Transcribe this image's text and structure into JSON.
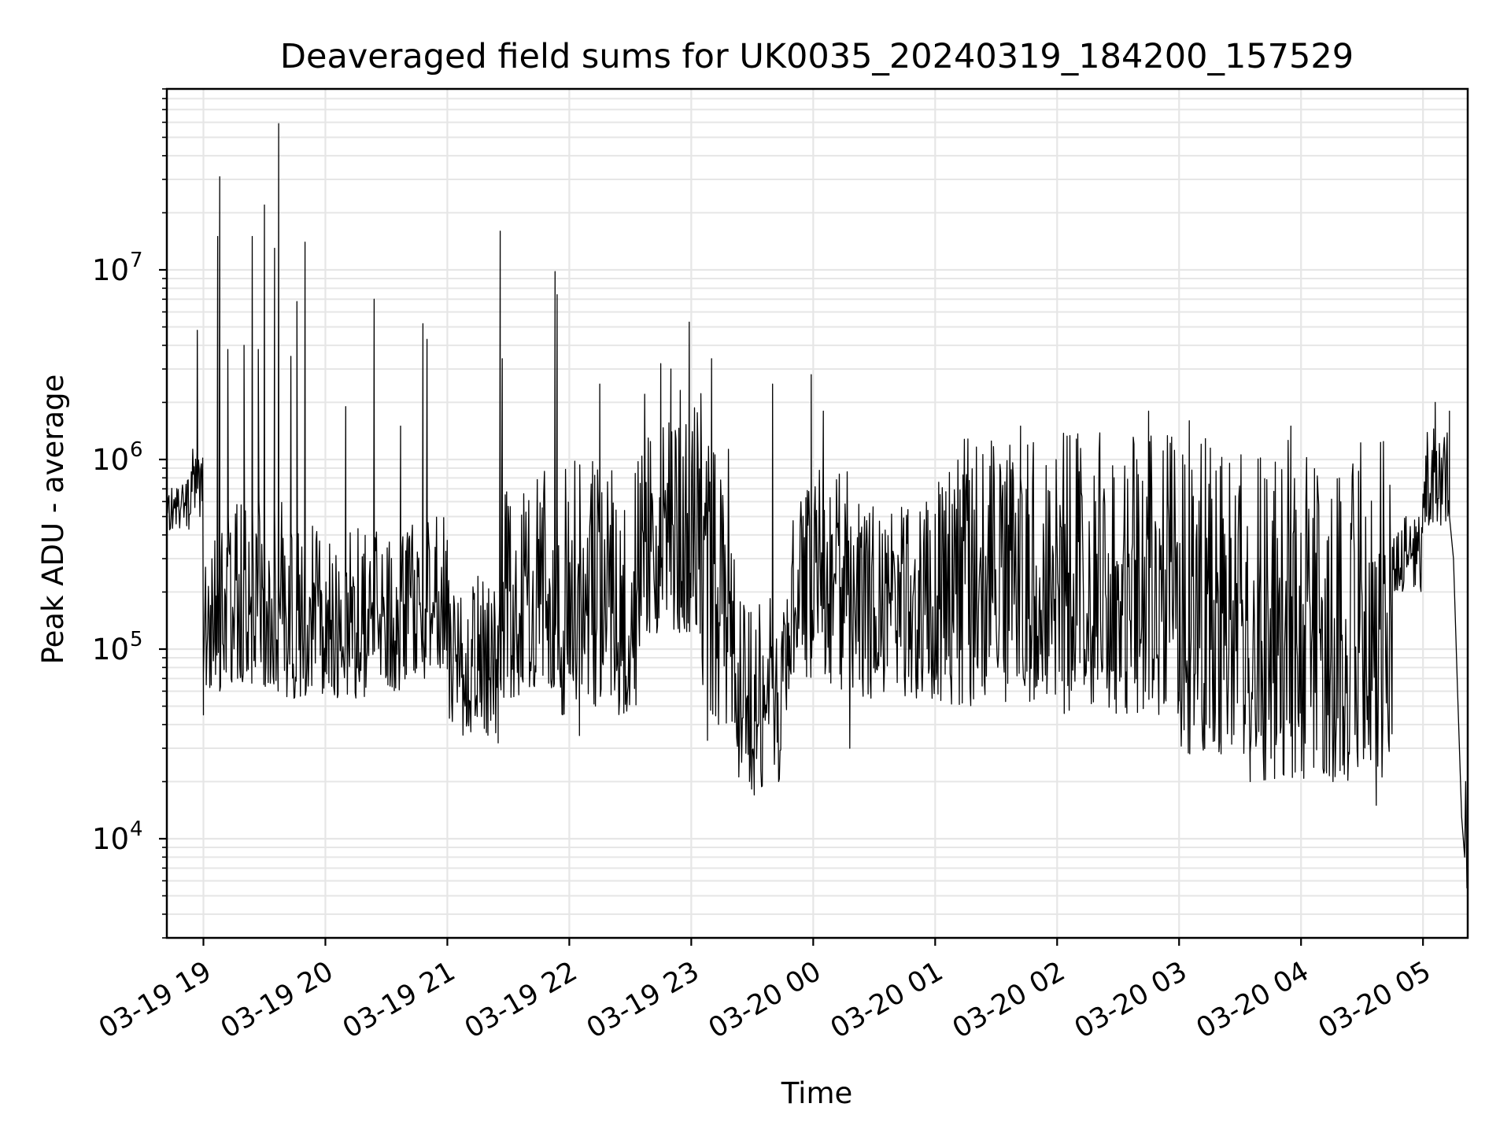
{
  "chart_data": {
    "type": "line",
    "title": "Deaveraged field sums for UK0035_20240319_184200_157529",
    "xlabel": "Time",
    "ylabel": "Peak ADU - average",
    "yscale": "log",
    "grid": true,
    "grid_minor": true,
    "line_color": "#000000",
    "grid_color": "#e6e6e6",
    "xlim": [
      "2024-03-19 18:42",
      "2024-03-20 05:22"
    ],
    "ylim": [
      3000,
      90000000
    ],
    "xticks": [
      {
        "value": "2024-03-19 19:00",
        "label": "03-19 19"
      },
      {
        "value": "2024-03-19 20:00",
        "label": "03-19 20"
      },
      {
        "value": "2024-03-19 21:00",
        "label": "03-19 21"
      },
      {
        "value": "2024-03-19 22:00",
        "label": "03-19 22"
      },
      {
        "value": "2024-03-19 23:00",
        "label": "03-19 23"
      },
      {
        "value": "2024-03-20 00:00",
        "label": "03-20 00"
      },
      {
        "value": "2024-03-20 01:00",
        "label": "03-20 01"
      },
      {
        "value": "2024-03-20 02:00",
        "label": "03-20 02"
      },
      {
        "value": "2024-03-20 03:00",
        "label": "03-20 03"
      },
      {
        "value": "2024-03-20 04:00",
        "label": "03-20 04"
      },
      {
        "value": "2024-03-20 05:00",
        "label": "03-20 05"
      }
    ],
    "yticks": [
      {
        "value": 10000,
        "base": "10",
        "exp": "4"
      },
      {
        "value": 100000,
        "base": "10",
        "exp": "5"
      },
      {
        "value": 1000000,
        "base": "10",
        "exp": "6"
      },
      {
        "value": 10000000,
        "base": "10",
        "exp": "7"
      }
    ],
    "series": [
      {
        "segments": [
          {
            "start": "2024-03-19 18:42",
            "end": "2024-03-19 18:53",
            "low": 420000,
            "high": 800000
          },
          {
            "start": "2024-03-19 18:53",
            "end": "2024-03-19 19:00",
            "low": 500000,
            "high": 1200000
          },
          {
            "start": "2024-03-19 19:00",
            "end": "2024-03-19 19:40",
            "low": 60000,
            "high": 600000
          },
          {
            "start": "2024-03-19 19:40",
            "end": "2024-03-19 20:40",
            "low": 55000,
            "high": 450000
          },
          {
            "start": "2024-03-19 20:40",
            "end": "2024-03-19 21:00",
            "low": 70000,
            "high": 500000
          },
          {
            "start": "2024-03-19 21:00",
            "end": "2024-03-19 21:25",
            "low": 35000,
            "high": 250000
          },
          {
            "start": "2024-03-19 21:25",
            "end": "2024-03-19 21:55",
            "low": 55000,
            "high": 900000
          },
          {
            "start": "2024-03-19 21:55",
            "end": "2024-03-19 22:35",
            "low": 45000,
            "high": 1000000
          },
          {
            "start": "2024-03-19 22:35",
            "end": "2024-03-19 23:05",
            "low": 120000,
            "high": 2500000
          },
          {
            "start": "2024-03-19 23:05",
            "end": "2024-03-19 23:22",
            "low": 40000,
            "high": 1300000
          },
          {
            "start": "2024-03-19 23:22",
            "end": "2024-03-19 23:48",
            "low": 18000,
            "high": 200000
          },
          {
            "start": "2024-03-19 23:48",
            "end": "2024-03-20 00:20",
            "low": 60000,
            "high": 900000
          },
          {
            "start": "2024-03-20 00:20",
            "end": "2024-03-20 01:00",
            "low": 55000,
            "high": 600000
          },
          {
            "start": "2024-03-20 01:00",
            "end": "2024-03-20 02:00",
            "low": 50000,
            "high": 1300000
          },
          {
            "start": "2024-03-20 02:00",
            "end": "2024-03-20 03:00",
            "low": 45000,
            "high": 1400000
          },
          {
            "start": "2024-03-20 03:00",
            "end": "2024-03-20 03:40",
            "low": 28000,
            "high": 1300000
          },
          {
            "start": "2024-03-20 03:40",
            "end": "2024-03-20 04:45",
            "low": 20000,
            "high": 1300000
          },
          {
            "start": "2024-03-20 04:45",
            "end": "2024-03-20 05:00",
            "low": 200000,
            "high": 500000
          },
          {
            "start": "2024-03-20 05:00",
            "end": "2024-03-20 05:13",
            "low": 450000,
            "high": 1500000
          }
        ],
        "peaks": [
          {
            "t": "2024-03-19 18:57",
            "v": 4800000
          },
          {
            "t": "2024-03-19 19:07",
            "v": 15000000
          },
          {
            "t": "2024-03-19 19:08",
            "v": 31000000
          },
          {
            "t": "2024-03-19 19:12",
            "v": 3800000
          },
          {
            "t": "2024-03-19 19:20",
            "v": 4000000
          },
          {
            "t": "2024-03-19 19:24",
            "v": 15000000
          },
          {
            "t": "2024-03-19 19:27",
            "v": 3800000
          },
          {
            "t": "2024-03-19 19:30",
            "v": 22000000
          },
          {
            "t": "2024-03-19 19:35",
            "v": 13000000
          },
          {
            "t": "2024-03-19 19:37",
            "v": 59000000
          },
          {
            "t": "2024-03-19 19:43",
            "v": 3500000
          },
          {
            "t": "2024-03-19 19:46",
            "v": 6800000
          },
          {
            "t": "2024-03-19 19:50",
            "v": 14000000
          },
          {
            "t": "2024-03-19 20:10",
            "v": 1900000
          },
          {
            "t": "2024-03-19 20:24",
            "v": 7000000
          },
          {
            "t": "2024-03-19 20:37",
            "v": 1500000
          },
          {
            "t": "2024-03-19 20:48",
            "v": 5200000
          },
          {
            "t": "2024-03-19 20:50",
            "v": 4300000
          },
          {
            "t": "2024-03-19 21:26",
            "v": 16000000
          },
          {
            "t": "2024-03-19 21:27",
            "v": 3400000
          },
          {
            "t": "2024-03-19 21:53",
            "v": 9800000
          },
          {
            "t": "2024-03-19 21:54",
            "v": 7400000
          },
          {
            "t": "2024-03-19 22:15",
            "v": 2500000
          },
          {
            "t": "2024-03-19 22:45",
            "v": 3200000
          },
          {
            "t": "2024-03-19 22:50",
            "v": 3000000
          },
          {
            "t": "2024-03-19 22:59",
            "v": 5300000
          },
          {
            "t": "2024-03-19 23:10",
            "v": 3400000
          },
          {
            "t": "2024-03-19 23:40",
            "v": 2500000
          },
          {
            "t": "2024-03-19 23:59",
            "v": 2800000
          },
          {
            "t": "2024-03-20 00:05",
            "v": 1800000
          },
          {
            "t": "2024-03-20 01:42",
            "v": 1500000
          },
          {
            "t": "2024-03-20 02:45",
            "v": 1800000
          },
          {
            "t": "2024-03-20 03:05",
            "v": 1600000
          },
          {
            "t": "2024-03-20 03:55",
            "v": 1500000
          },
          {
            "t": "2024-03-20 05:06",
            "v": 2000000
          },
          {
            "t": "2024-03-20 05:13",
            "v": 1800000
          },
          {
            "t": "2024-03-20 05:22",
            "v": 5500
          }
        ],
        "dips": [
          {
            "t": "2024-03-19 19:00",
            "v": 45000
          },
          {
            "t": "2024-03-19 21:25",
            "v": 32000
          },
          {
            "t": "2024-03-19 22:05",
            "v": 35000
          },
          {
            "t": "2024-03-19 23:08",
            "v": 33000
          },
          {
            "t": "2024-03-19 23:31",
            "v": 17000
          },
          {
            "t": "2024-03-20 00:18",
            "v": 30000
          },
          {
            "t": "2024-03-20 03:35",
            "v": 20000
          },
          {
            "t": "2024-03-20 04:37",
            "v": 15000
          }
        ]
      }
    ]
  }
}
